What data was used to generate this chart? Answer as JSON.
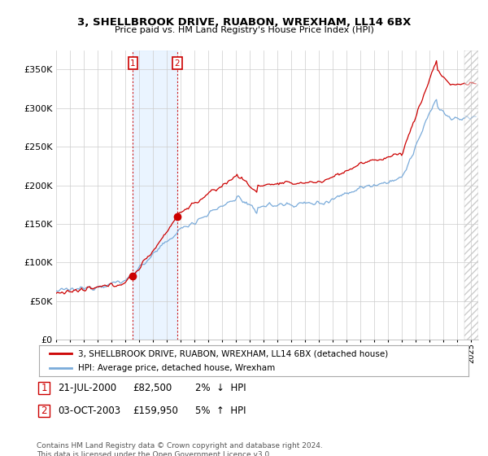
{
  "title": "3, SHELLBROOK DRIVE, RUABON, WREXHAM, LL14 6BX",
  "subtitle": "Price paid vs. HM Land Registry's House Price Index (HPI)",
  "ylabel_ticks": [
    "£0",
    "£50K",
    "£100K",
    "£150K",
    "£200K",
    "£250K",
    "£300K",
    "£350K"
  ],
  "ytick_values": [
    0,
    50000,
    100000,
    150000,
    200000,
    250000,
    300000,
    350000
  ],
  "ylim": [
    0,
    375000
  ],
  "xlim_start": 1995.0,
  "xlim_end": 2025.5,
  "sale1_date": 2000.55,
  "sale1_price": 82500,
  "sale1_label": "1",
  "sale2_date": 2003.75,
  "sale2_price": 159950,
  "sale2_label": "2",
  "legend_line1": "3, SHELLBROOK DRIVE, RUABON, WREXHAM, LL14 6BX (detached house)",
  "legend_line2": "HPI: Average price, detached house, Wrexham",
  "footnote": "Contains HM Land Registry data © Crown copyright and database right 2024.\nThis data is licensed under the Open Government Licence v3.0.",
  "color_red": "#cc0000",
  "color_blue": "#7aabda",
  "color_grid": "#cccccc",
  "color_vline": "#cc0000",
  "color_shade": "#ddeeff",
  "background": "#ffffff",
  "hatch_color": "#cccccc"
}
